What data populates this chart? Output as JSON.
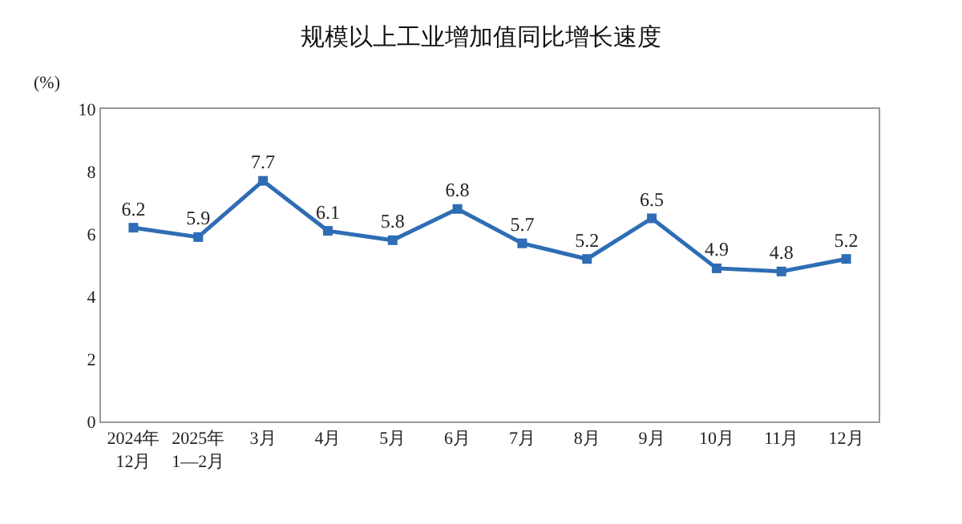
{
  "chart_data": {
    "type": "line",
    "title": "规模以上工业增加值同比增长速度",
    "ylabel": "(%)",
    "categories": [
      "2024年\n12月",
      "2025年\n1—2月",
      "3月",
      "4月",
      "5月",
      "6月",
      "7月",
      "8月",
      "9月",
      "10月",
      "11月",
      "12月"
    ],
    "series": [
      {
        "color": "#2e6db4",
        "values": [
          6.2,
          5.9,
          7.7,
          6.1,
          5.8,
          6.8,
          5.7,
          5.2,
          6.5,
          4.9,
          4.8,
          5.2
        ]
      }
    ],
    "ylim": [
      0,
      10
    ],
    "yticks": [
      0,
      2,
      4,
      6,
      8,
      10
    ],
    "data_labels": true,
    "marker": "square",
    "line_style": "solid"
  }
}
